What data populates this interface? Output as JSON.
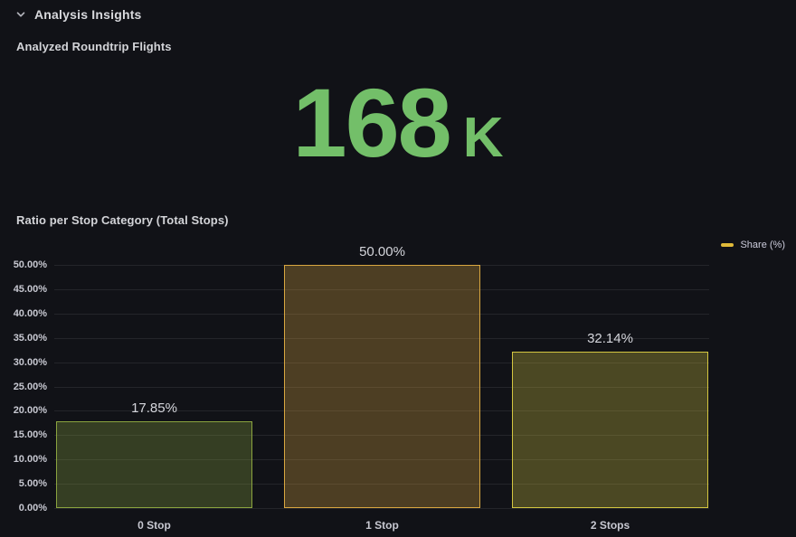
{
  "header": {
    "title": "Analysis Insights",
    "collapse_icon": "chevron-down"
  },
  "stat_panel": {
    "title": "Analyzed Roundtrip Flights",
    "value": "168",
    "suffix": "K",
    "value_color": "#73BF69"
  },
  "chart_panel": {
    "title": "Ratio per Stop Category (Total Stops)"
  },
  "legend": {
    "label": "Share (%)",
    "swatch_color": "#e0ba39"
  },
  "chart_data": {
    "type": "bar",
    "title": "Ratio per Stop Category (Total Stops)",
    "categories": [
      "0 Stop",
      "1 Stop",
      "2 Stops"
    ],
    "series": [
      {
        "name": "Share (%)",
        "values": [
          17.85,
          50.0,
          32.14
        ]
      }
    ],
    "value_labels": [
      "17.85%",
      "50.00%",
      "32.14%"
    ],
    "ylim": [
      0,
      50
    ],
    "ytick_step": 5,
    "ytick_decimals": 2,
    "ytick_suffix": "%",
    "grid": true,
    "legend_position": "top-right",
    "bar_colors": [
      {
        "stroke": "#8ba43f",
        "fill": "rgba(139,164,63,0.30)"
      },
      {
        "stroke": "#d9a740",
        "fill": "rgba(217,167,64,0.30)"
      },
      {
        "stroke": "#d3c640",
        "fill": "rgba(211,198,64,0.30)"
      }
    ],
    "axis_text_color": "#c7c8d1",
    "grid_color": "rgba(204,204,220,0.10)",
    "value_label_color": "#d4d5db"
  }
}
